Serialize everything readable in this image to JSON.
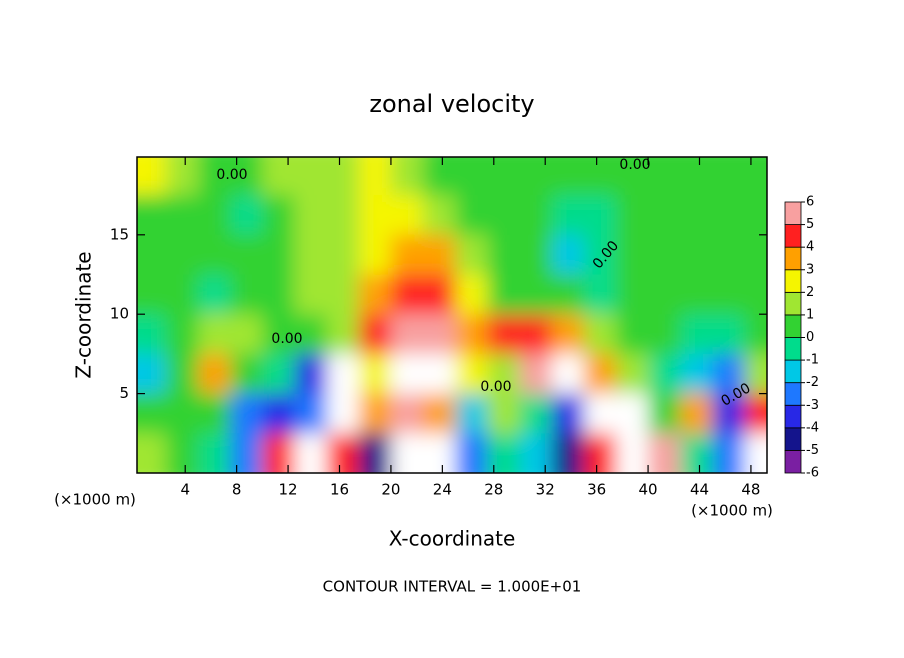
{
  "chart_data": {
    "type": "heatmap",
    "title": "zonal velocity",
    "x_label": "X-coordinate",
    "y_label": "Z-coordinate",
    "x_unit_left": "(×1000 m)",
    "x_unit_right": "(×1000 m)",
    "note": "CONTOUR INTERVAL = 1.000E+01",
    "xlim": [
      0.25,
      49.25
    ],
    "ylim": [
      0,
      19.9
    ],
    "xticks": [
      4,
      8,
      12,
      16,
      20,
      24,
      28,
      32,
      36,
      40,
      44,
      48
    ],
    "yticks": [
      5,
      10,
      15
    ],
    "x": [
      1.25,
      3.75,
      6.25,
      8.75,
      11.25,
      13.75,
      16.25,
      18.75,
      21.25,
      23.75,
      26.25,
      28.75,
      31.25,
      33.75,
      36.25,
      38.75,
      41.25,
      43.75,
      46.25,
      48.75
    ],
    "y": [
      18.75,
      16.25,
      13.75,
      11.25,
      8.75,
      6.25,
      3.75,
      1.25
    ],
    "z": [
      [
        2,
        1,
        0.5,
        0.5,
        1,
        1.5,
        1.5,
        2,
        1,
        0.5,
        0.5,
        0.5,
        0.3,
        0.3,
        0.3,
        0.3,
        0.3,
        0.3,
        0.3,
        0.5
      ],
      [
        0.5,
        0.3,
        0.2,
        -0.3,
        0.5,
        1,
        1,
        2,
        2,
        1.5,
        0.5,
        0.3,
        0.3,
        -0.5,
        -0.5,
        0.3,
        0.5,
        0.5,
        0.5,
        0.5
      ],
      [
        0.5,
        0.5,
        0,
        0,
        0.5,
        1,
        1,
        2.5,
        3.5,
        3,
        1,
        0.5,
        0,
        -1.5,
        -1,
        0,
        0.5,
        0.5,
        0.5,
        0.5
      ],
      [
        0.5,
        0.5,
        -1,
        0,
        0.5,
        1,
        1.5,
        3,
        4,
        4,
        2,
        0.8,
        0.5,
        0,
        -0.5,
        0.3,
        0.5,
        0.5,
        0.5,
        0.5
      ],
      [
        -0.2,
        0.5,
        1,
        1,
        0.5,
        0,
        1.5,
        4,
        5,
        5,
        3,
        4,
        4.5,
        3,
        1,
        0.5,
        0.2,
        -0.5,
        -0.5,
        0.3
      ],
      [
        -1.5,
        0.5,
        3,
        0.5,
        -0.5,
        -4,
        6,
        2,
        8,
        7,
        2,
        1,
        5,
        7,
        3,
        1,
        -0.5,
        -2,
        -3,
        1
      ],
      [
        0.5,
        0.5,
        0,
        -2.5,
        -4,
        -3,
        8,
        3,
        5,
        3,
        -2,
        1,
        -0.5,
        -4,
        8,
        7,
        0.5,
        3,
        -4,
        4
      ],
      [
        1,
        0.5,
        -0.5,
        -3,
        4,
        8,
        4,
        -5,
        8,
        7,
        -3,
        -0.5,
        -2,
        -5,
        4,
        8,
        5,
        -1,
        -3,
        8
      ]
    ],
    "colorbar": {
      "levels": [
        -6,
        -5,
        -4,
        -3,
        -2,
        -1,
        0,
        1,
        2,
        3,
        4,
        5,
        6
      ],
      "colors": [
        "#7a1fa2",
        "#14148c",
        "#2828e6",
        "#1e78ff",
        "#00c8e6",
        "#00dc8c",
        "#32d232",
        "#a0e632",
        "#f5f500",
        "#ffa000",
        "#ff2020",
        "#f8a0a0"
      ],
      "above_color": "#ffffff"
    },
    "contour_labels": [
      "0.00",
      "0.00",
      "0.00",
      "0.00",
      "0.00",
      "0.00"
    ]
  }
}
